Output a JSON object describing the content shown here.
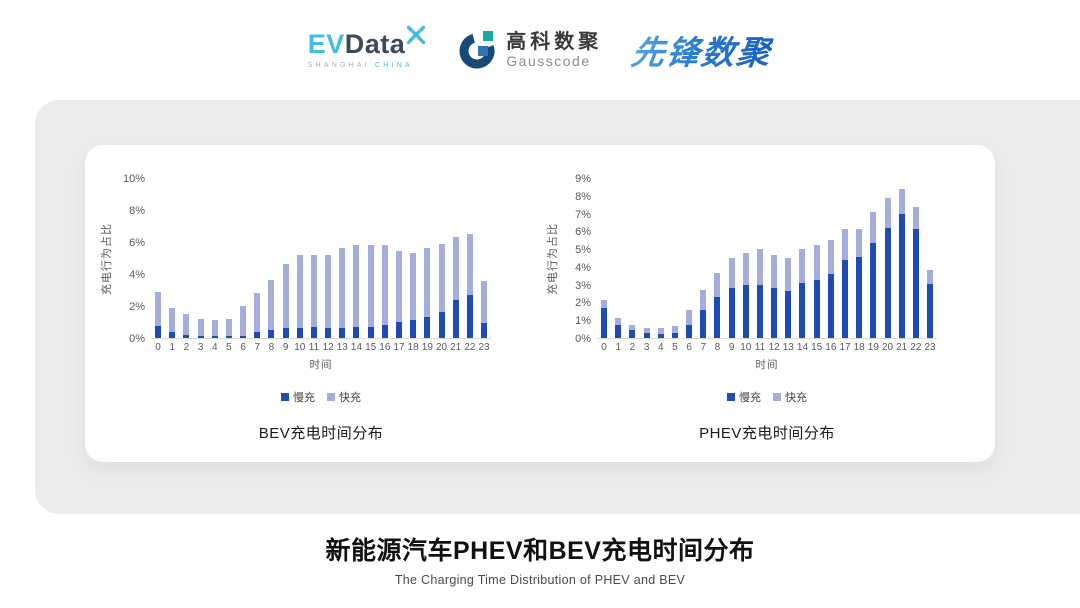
{
  "header": {
    "evdata": {
      "ev": "EV",
      "data": "Data",
      "sub_left": "SHANGHAI",
      "sub_right": "CHINA"
    },
    "gausscode": {
      "cn": "高科数聚",
      "en": "Gausscode"
    },
    "pioneer": "先锋数聚"
  },
  "colors": {
    "slow_charge": "#1E4CB2",
    "fast_charge": "#A4ADDC",
    "panel_gray": "#ECECEC",
    "axis_text": "#595959",
    "pioneer_blue": "#2B7BD0",
    "evdata_blue": "#45BCE5",
    "evdata_dark": "#3C4A5B"
  },
  "chart_data": [
    {
      "type": "bar",
      "stacked": true,
      "title": "BEV充电时间分布",
      "xlabel": "时间",
      "ylabel": "充电行为占比",
      "ylim": [
        0,
        10
      ],
      "y_tick_step": 2,
      "y_tick_labels": [
        "0%",
        "2%",
        "4%",
        "6%",
        "8%",
        "10%"
      ],
      "grid": false,
      "legend_position": "bottom",
      "categories": [
        "0",
        "1",
        "2",
        "3",
        "4",
        "5",
        "6",
        "7",
        "8",
        "9",
        "10",
        "11",
        "12",
        "13",
        "14",
        "15",
        "16",
        "17",
        "18",
        "19",
        "20",
        "21",
        "22",
        "23"
      ],
      "series": [
        {
          "key": "slow",
          "name": "慢充",
          "color": "#1E4CB2",
          "values": [
            0.75,
            0.35,
            0.2,
            0.1,
            0.1,
            0.1,
            0.15,
            0.35,
            0.5,
            0.65,
            0.6,
            0.7,
            0.6,
            0.65,
            0.7,
            0.7,
            0.8,
            1.0,
            1.1,
            1.3,
            1.6,
            2.4,
            2.7,
            0.95
          ]
        },
        {
          "key": "fast",
          "name": "快充",
          "color": "#A4ADDC",
          "values": [
            2.15,
            1.55,
            1.3,
            1.1,
            1.0,
            1.1,
            1.85,
            2.45,
            3.1,
            3.95,
            4.6,
            4.5,
            4.6,
            4.95,
            5.1,
            5.1,
            5.0,
            4.45,
            4.2,
            4.3,
            4.3,
            3.9,
            3.8,
            2.6
          ]
        }
      ]
    },
    {
      "type": "bar",
      "stacked": true,
      "title": "PHEV充电时间分布",
      "xlabel": "时间",
      "ylabel": "充电行为占比",
      "ylim": [
        0,
        9
      ],
      "y_tick_step": 1,
      "y_tick_labels": [
        "0%",
        "1%",
        "2%",
        "3%",
        "4%",
        "5%",
        "6%",
        "7%",
        "8%",
        "9%"
      ],
      "grid": false,
      "legend_position": "bottom",
      "categories": [
        "0",
        "1",
        "2",
        "3",
        "4",
        "5",
        "6",
        "7",
        "8",
        "9",
        "10",
        "11",
        "12",
        "13",
        "14",
        "15",
        "16",
        "17",
        "18",
        "19",
        "20",
        "21",
        "22",
        "23"
      ],
      "series": [
        {
          "key": "slow",
          "name": "慢充",
          "color": "#1E4CB2",
          "values": [
            1.7,
            0.75,
            0.45,
            0.3,
            0.25,
            0.3,
            0.75,
            1.6,
            2.3,
            2.8,
            3.0,
            3.0,
            2.8,
            2.65,
            3.1,
            3.25,
            3.6,
            4.4,
            4.55,
            5.35,
            6.2,
            7.0,
            6.15,
            3.05
          ]
        },
        {
          "key": "fast",
          "name": "快充",
          "color": "#A4ADDC",
          "values": [
            0.45,
            0.4,
            0.3,
            0.25,
            0.3,
            0.4,
            0.85,
            1.1,
            1.35,
            1.7,
            1.8,
            2.0,
            1.85,
            1.85,
            1.9,
            2.0,
            1.9,
            1.75,
            1.6,
            1.75,
            1.7,
            1.4,
            1.2,
            0.8
          ]
        }
      ]
    }
  ],
  "footer": {
    "title": "新能源汽车PHEV和BEV充电时间分布",
    "subtitle": "The Charging Time Distribution of PHEV and BEV"
  }
}
